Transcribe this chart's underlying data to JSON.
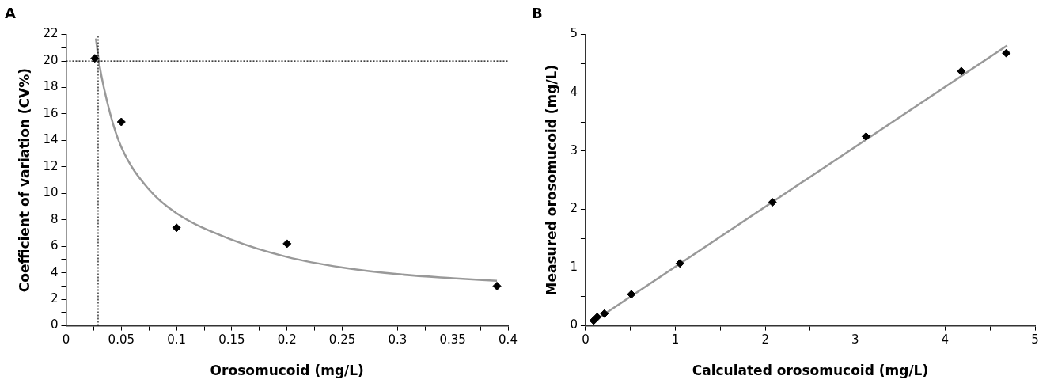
{
  "chart_data": [
    {
      "type": "scatter",
      "title": "A",
      "xlabel": "Orosomucoid (mg/L)",
      "ylabel": "Coefficient of variation (CV%)",
      "xlim": [
        0,
        0.4
      ],
      "ylim": [
        0,
        22
      ],
      "xticks": [
        0,
        {
          "value": 0.025,
          "label": null
        },
        0.05,
        {
          "value": 0.075,
          "label": null
        },
        0.1,
        {
          "value": 0.125,
          "label": null
        },
        0.15,
        {
          "value": 0.175,
          "label": null
        },
        0.2,
        {
          "value": 0.225,
          "label": null
        },
        0.25,
        {
          "value": 0.275,
          "label": null
        },
        0.3,
        {
          "value": 0.325,
          "label": null
        },
        0.35,
        {
          "value": 0.375,
          "label": null
        },
        0.4
      ],
      "yticks": [
        0,
        {
          "value": 1,
          "label": null
        },
        2,
        {
          "value": 3,
          "label": null
        },
        4,
        {
          "value": 5,
          "label": null
        },
        6,
        {
          "value": 7,
          "label": null
        },
        8,
        {
          "value": 9,
          "label": null
        },
        10,
        {
          "value": 11,
          "label": null
        },
        12,
        {
          "value": 13,
          "label": null
        },
        14,
        {
          "value": 15,
          "label": null
        },
        16,
        {
          "value": 17,
          "label": null
        },
        18,
        {
          "value": 19,
          "label": null
        },
        20,
        {
          "value": 21,
          "label": null
        },
        22
      ],
      "grid": false,
      "legend": false,
      "series": [
        {
          "type": "line",
          "marker": "none",
          "color": "#999999",
          "x": [
            0.027,
            0.03,
            0.04,
            0.05,
            0.075,
            0.1,
            0.15,
            0.2,
            0.25,
            0.3,
            0.35,
            0.39
          ],
          "values": [
            21.7,
            19.8,
            16,
            13.5,
            10.3,
            8.5,
            6.5,
            5.2,
            4.4,
            3.9,
            3.6,
            3.4
          ]
        },
        {
          "type": "scatter",
          "marker": "diamond",
          "color": "#000000",
          "x": [
            0.026,
            0.05,
            0.1,
            0.2,
            0.39
          ],
          "values": [
            20.2,
            15.4,
            7.4,
            6.2,
            3.0
          ]
        }
      ],
      "ref_lines": [
        {
          "axis": "x",
          "value": 0.029,
          "color": "#000000",
          "line_style": "dotted"
        },
        {
          "axis": "y",
          "value": 20,
          "color": "#000000",
          "line_style": "dotted"
        }
      ]
    },
    {
      "type": "scatter",
      "title": "B",
      "xlabel": "Calculated orosomucoid (mg/L)",
      "ylabel": "Measured orosomucoid (mg/L)",
      "xlim": [
        0,
        5
      ],
      "ylim": [
        0,
        5
      ],
      "xticks": [
        0,
        {
          "value": 0.5,
          "label": null
        },
        1,
        {
          "value": 1.5,
          "label": null
        },
        2,
        {
          "value": 2.5,
          "label": null
        },
        3,
        {
          "value": 3.5,
          "label": null
        },
        4,
        {
          "value": 4.5,
          "label": null
        },
        5
      ],
      "yticks": [
        0,
        {
          "value": 0.5,
          "label": null
        },
        1,
        {
          "value": 1.5,
          "label": null
        },
        2,
        {
          "value": 2.5,
          "label": null
        },
        3,
        {
          "value": 3.5,
          "label": null
        },
        4,
        {
          "value": 4.5,
          "label": null
        },
        5
      ],
      "grid": false,
      "legend": false,
      "series": [
        {
          "type": "line",
          "marker": "none",
          "color": "#999999",
          "x": [
            0.15,
            4.69
          ],
          "values": [
            0.14,
            4.81
          ]
        },
        {
          "type": "scatter",
          "marker": "diamond",
          "color": "#000000",
          "x": [
            0.09,
            0.13,
            0.21,
            0.51,
            1.05,
            2.08,
            3.12,
            4.18,
            4.68
          ],
          "values": [
            0.09,
            0.15,
            0.21,
            0.54,
            1.07,
            2.12,
            3.25,
            4.37,
            4.68
          ]
        }
      ]
    }
  ]
}
